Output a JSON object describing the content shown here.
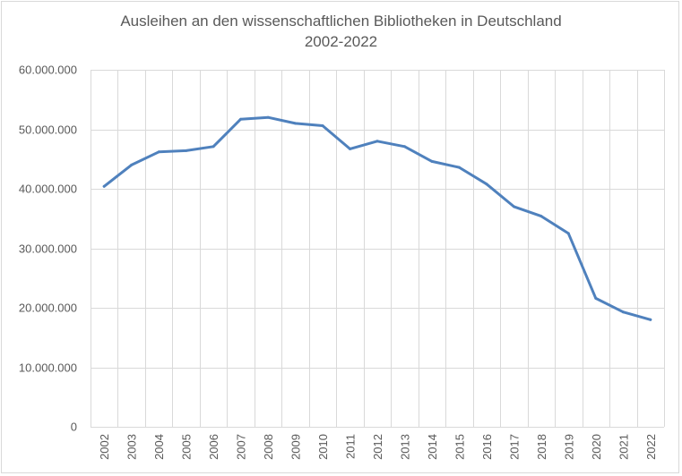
{
  "chart_data": {
    "type": "line",
    "title": "Ausleihen an den wissenschaftlichen Bibliotheken in Deutschland",
    "subtitle": "2002-2022",
    "xlabel": "",
    "ylabel": "",
    "categories": [
      "2002",
      "2003",
      "2004",
      "2005",
      "2006",
      "2007",
      "2008",
      "2009",
      "2010",
      "2011",
      "2012",
      "2013",
      "2014",
      "2015",
      "2016",
      "2017",
      "2018",
      "2019",
      "2020",
      "2021",
      "2022"
    ],
    "series": [
      {
        "values": [
          40400000,
          44000000,
          46200000,
          46400000,
          47100000,
          51700000,
          52000000,
          51000000,
          50600000,
          46700000,
          48000000,
          47100000,
          44600000,
          43600000,
          40800000,
          37000000,
          35400000,
          32500000,
          21600000,
          19300000,
          18000000
        ],
        "color": "#4f81bd"
      }
    ],
    "ylim": [
      0,
      60000000
    ],
    "yticks": [
      0,
      10000000,
      20000000,
      30000000,
      40000000,
      50000000,
      60000000
    ],
    "ytick_labels": [
      "0",
      "10.000.000",
      "20.000.000",
      "30.000.000",
      "40.000.000",
      "50.000.000",
      "60.000.000"
    ],
    "grid": true,
    "gridline_color": "#d9d9d9",
    "legend": "none"
  }
}
